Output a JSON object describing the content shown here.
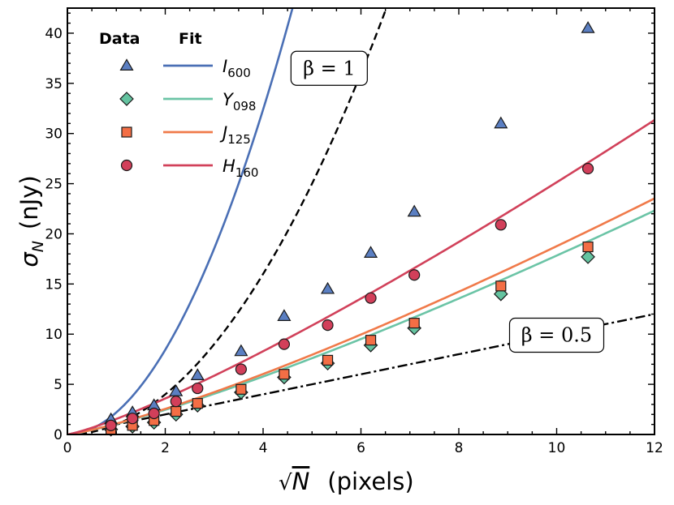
{
  "chart_data": {
    "type": "scatter",
    "xlabel_prefix": "√",
    "xlabel_var": "N",
    "xlabel_unit": "(pixels)",
    "ylabel_var": "σ",
    "ylabel_sub": "N",
    "ylabel_unit": "(nJy)",
    "xlim": [
      0,
      12
    ],
    "ylim": [
      0,
      42.5
    ],
    "xticks": [
      0,
      2,
      4,
      6,
      8,
      10,
      12
    ],
    "yticks": [
      0,
      5,
      10,
      15,
      20,
      25,
      30,
      35,
      40
    ],
    "legend": {
      "data_header": "Data",
      "fit_header": "Fit",
      "placement": "top-left"
    },
    "series": [
      {
        "name": "I",
        "sub": "600",
        "marker": "triangle",
        "color": "#4a6fb5",
        "fill": "#5b7fc2",
        "x": [
          0.89,
          1.33,
          1.77,
          2.22,
          2.66,
          3.55,
          4.43,
          5.32,
          6.2,
          7.09,
          8.86,
          10.64
        ],
        "y": [
          1.5,
          2.2,
          2.9,
          4.3,
          5.9,
          8.3,
          11.8,
          14.5,
          18.1,
          22.2,
          31.0,
          40.5
        ],
        "fit": [
          0,
          2.2,
          1.94
        ]
      },
      {
        "name": "Y",
        "sub": "098",
        "marker": "diamond",
        "color": "#6bc4a6",
        "fill": "#64c3a0",
        "x": [
          0.89,
          1.33,
          1.77,
          2.22,
          2.66,
          3.55,
          4.43,
          5.32,
          6.2,
          7.09,
          8.86,
          10.64
        ],
        "y": [
          0.5,
          0.8,
          1.2,
          2.0,
          2.9,
          4.2,
          5.7,
          7.1,
          8.9,
          10.6,
          14.0,
          17.7
        ],
        "fit": [
          0,
          1.05,
          1.23
        ]
      },
      {
        "name": "J",
        "sub": "125",
        "marker": "square",
        "color": "#f07a4a",
        "fill": "#f36e45",
        "x": [
          0.89,
          1.33,
          1.77,
          2.22,
          2.66,
          3.55,
          4.43,
          5.32,
          6.2,
          7.09,
          8.86,
          10.64
        ],
        "y": [
          0.5,
          0.9,
          1.4,
          2.3,
          3.1,
          4.5,
          6.0,
          7.4,
          9.4,
          11.1,
          14.8,
          18.7
        ],
        "fit": [
          0,
          1.08,
          1.24
        ]
      },
      {
        "name": "H",
        "sub": "160",
        "marker": "circle",
        "color": "#d1415a",
        "fill": "#d23f5a",
        "x": [
          0.89,
          1.33,
          1.77,
          2.22,
          2.66,
          3.55,
          4.43,
          5.32,
          6.2,
          7.09,
          8.86,
          10.64
        ],
        "y": [
          0.9,
          1.6,
          2.1,
          3.3,
          4.6,
          6.5,
          9.0,
          10.9,
          13.6,
          15.9,
          20.9,
          26.5
        ],
        "fit": [
          0,
          1.55,
          1.21
        ]
      }
    ],
    "reference_lines": [
      {
        "label": "β = 1",
        "beta": 1,
        "amplitude": 1.0,
        "style": "dashed"
      },
      {
        "label": "β = 0.5",
        "beta": 0.5,
        "amplitude": 1.0,
        "style": "dashdot"
      }
    ],
    "annotations": [
      {
        "text": "β = 1",
        "at_x": 5.35,
        "at_y": 36.5
      },
      {
        "text": "β = 0.5",
        "at_x": 10.0,
        "at_y": 9.9
      }
    ]
  }
}
